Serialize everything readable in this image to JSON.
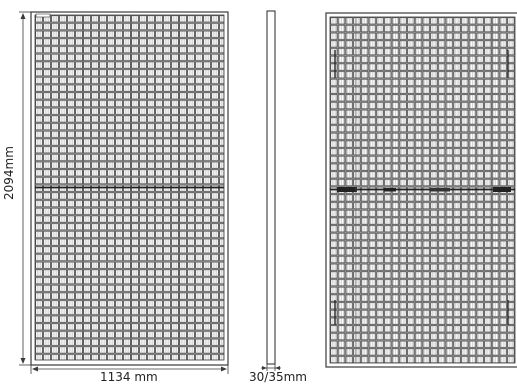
{
  "dimensions": {
    "height": "2094mm",
    "width": "1134 mm",
    "thickness": "30/35mm"
  },
  "colors": {
    "stroke": "#3a3a3a",
    "grid": "#4a4a4a",
    "background": "#ffffff"
  },
  "panels": {
    "front": {
      "cell_columns": 24,
      "cell_rows_per_half": 22
    },
    "back": {
      "cell_columns": 24,
      "cell_rows_per_half": 22
    }
  }
}
